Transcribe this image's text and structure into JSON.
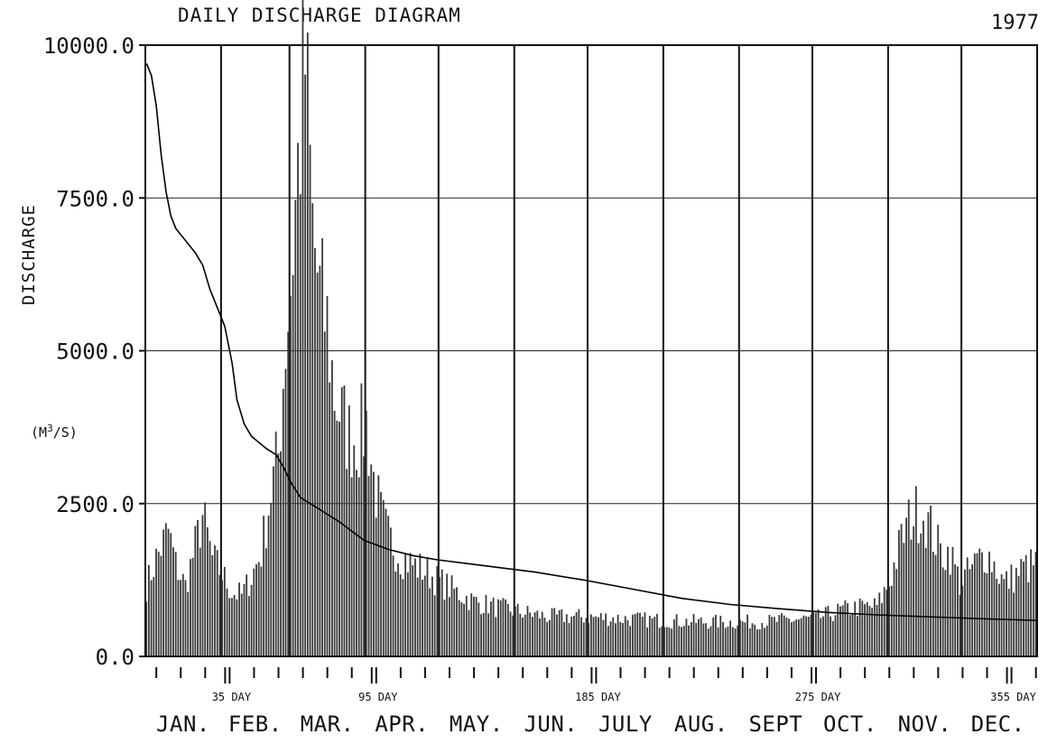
{
  "chart_data": {
    "type": "bar",
    "title": "DAILY DISCHARGE DIAGRAM",
    "year": "1977",
    "ylabel": "DISCHARGE",
    "unit_prefix": "(M",
    "unit_sup": "3",
    "unit_suffix": "/S)",
    "ylim": [
      0,
      10000
    ],
    "xlim": [
      1,
      365
    ],
    "y_ticks": [
      {
        "value": 0,
        "label": "0.0"
      },
      {
        "value": 2500,
        "label": "2500.0"
      },
      {
        "value": 5000,
        "label": "5000.0"
      },
      {
        "value": 7500,
        "label": "7500.0"
      },
      {
        "value": 10000,
        "label": "10000.0"
      }
    ],
    "day_labels": [
      {
        "day": 35,
        "label": "35 DAY"
      },
      {
        "day": 95,
        "label": "95 DAY"
      },
      {
        "day": 185,
        "label": "185 DAY"
      },
      {
        "day": 275,
        "label": "275 DAY"
      },
      {
        "day": 355,
        "label": "355 DAY"
      }
    ],
    "months": [
      "JAN.",
      "FEB.",
      "MAR.",
      "APR.",
      "MAY.",
      "JUN.",
      "JULY",
      "AUG.",
      "SEPT",
      "OCT.",
      "NOV.",
      "DEC."
    ],
    "month_start_days": [
      1,
      32,
      60,
      91,
      121,
      152,
      182,
      213,
      244,
      274,
      305,
      335,
      365
    ],
    "grid": true,
    "series": [
      {
        "kind": "bars",
        "anchors": [
          [
            1,
            1150
          ],
          [
            5,
            1600
          ],
          [
            10,
            2050
          ],
          [
            13,
            1500
          ],
          [
            17,
            1150
          ],
          [
            21,
            1800
          ],
          [
            24,
            2300
          ],
          [
            28,
            1600
          ],
          [
            32,
            1350
          ],
          [
            36,
            1050
          ],
          [
            40,
            1000
          ],
          [
            44,
            1300
          ],
          [
            48,
            1700
          ],
          [
            52,
            2700
          ],
          [
            55,
            3300
          ],
          [
            58,
            5200
          ],
          [
            60,
            6100
          ],
          [
            63,
            8000
          ],
          [
            66,
            9700
          ],
          [
            69,
            7000
          ],
          [
            72,
            5900
          ],
          [
            75,
            5400
          ],
          [
            78,
            4300
          ],
          [
            81,
            3900
          ],
          [
            84,
            3600
          ],
          [
            88,
            3600
          ],
          [
            91,
            3800
          ],
          [
            94,
            2900
          ],
          [
            97,
            2300
          ],
          [
            100,
            1950
          ],
          [
            105,
            1650
          ],
          [
            110,
            1500
          ],
          [
            115,
            1400
          ],
          [
            120,
            1250
          ],
          [
            128,
            1050
          ],
          [
            135,
            900
          ],
          [
            145,
            800
          ],
          [
            155,
            720
          ],
          [
            165,
            650
          ],
          [
            175,
            650
          ],
          [
            185,
            640
          ],
          [
            195,
            620
          ],
          [
            205,
            600
          ],
          [
            215,
            580
          ],
          [
            225,
            570
          ],
          [
            235,
            560
          ],
          [
            245,
            560
          ],
          [
            255,
            570
          ],
          [
            265,
            600
          ],
          [
            275,
            620
          ],
          [
            285,
            750
          ],
          [
            292,
            800
          ],
          [
            300,
            820
          ],
          [
            305,
            1200
          ],
          [
            310,
            1900
          ],
          [
            314,
            2300
          ],
          [
            318,
            2400
          ],
          [
            322,
            2100
          ],
          [
            326,
            1700
          ],
          [
            330,
            1700
          ],
          [
            334,
            1200
          ],
          [
            338,
            1400
          ],
          [
            342,
            1600
          ],
          [
            345,
            1700
          ],
          [
            348,
            1500
          ],
          [
            352,
            1200
          ],
          [
            356,
            1300
          ],
          [
            360,
            1450
          ],
          [
            365,
            1500
          ]
        ]
      },
      {
        "kind": "duration_curve",
        "points": [
          [
            1,
            9700
          ],
          [
            3,
            9500
          ],
          [
            5,
            9000
          ],
          [
            7,
            8200
          ],
          [
            9,
            7600
          ],
          [
            11,
            7200
          ],
          [
            13,
            7000
          ],
          [
            15,
            6900
          ],
          [
            18,
            6750
          ],
          [
            21,
            6600
          ],
          [
            24,
            6400
          ],
          [
            27,
            6000
          ],
          [
            30,
            5700
          ],
          [
            33,
            5400
          ],
          [
            36,
            4800
          ],
          [
            38,
            4200
          ],
          [
            41,
            3800
          ],
          [
            44,
            3600
          ],
          [
            47,
            3500
          ],
          [
            50,
            3400
          ],
          [
            54,
            3300
          ],
          [
            57,
            3100
          ],
          [
            60,
            2850
          ],
          [
            64,
            2600
          ],
          [
            70,
            2450
          ],
          [
            80,
            2200
          ],
          [
            90,
            1900
          ],
          [
            100,
            1750
          ],
          [
            110,
            1650
          ],
          [
            120,
            1580
          ],
          [
            140,
            1480
          ],
          [
            160,
            1380
          ],
          [
            180,
            1250
          ],
          [
            200,
            1100
          ],
          [
            220,
            950
          ],
          [
            240,
            850
          ],
          [
            260,
            780
          ],
          [
            280,
            720
          ],
          [
            300,
            680
          ],
          [
            320,
            650
          ],
          [
            340,
            620
          ],
          [
            365,
            590
          ]
        ]
      }
    ]
  }
}
